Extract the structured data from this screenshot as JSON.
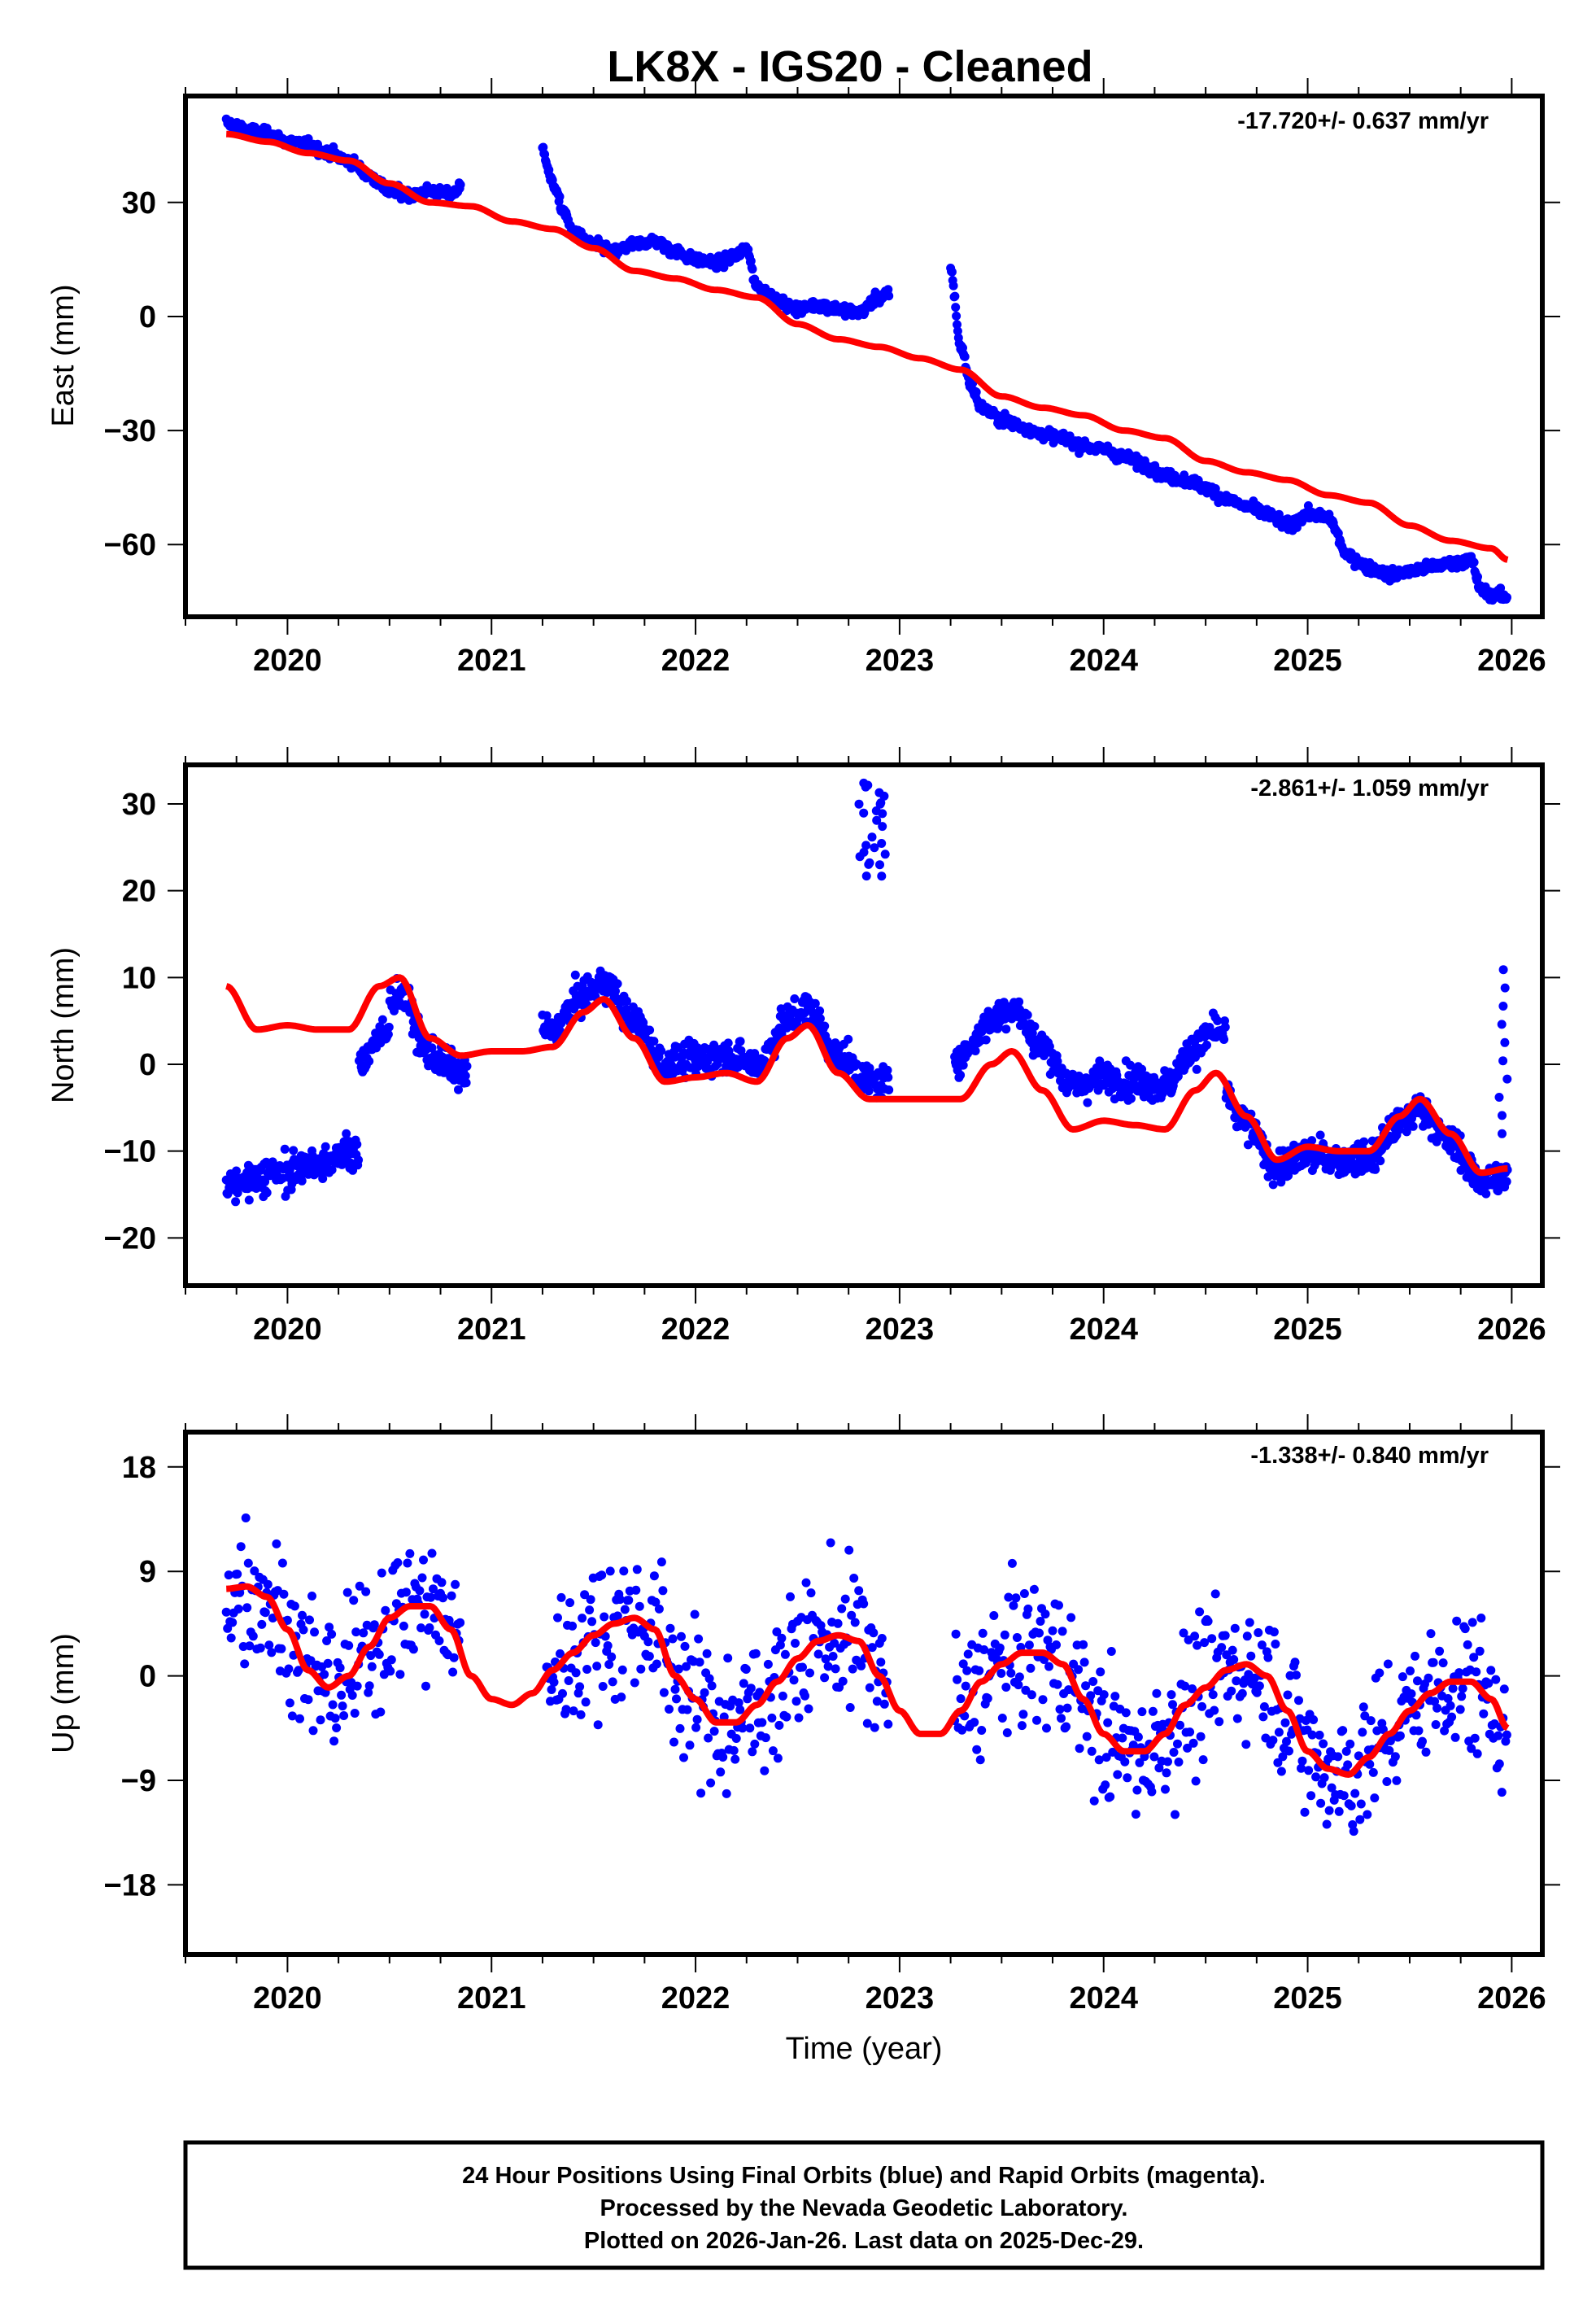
{
  "chart_data": {
    "type": "scatter",
    "title": "LK8X  - IGS20 - Cleaned",
    "xlabel": "Time (year)",
    "xlim": [
      2019.5,
      2026.15
    ],
    "x_ticks": [
      2020,
      2021,
      2022,
      2023,
      2024,
      2025,
      2026
    ],
    "x_tick_labels": [
      "2020",
      "2021",
      "2022",
      "2023",
      "2024",
      "2025",
      "2026"
    ],
    "x_minor_tick_step": 0.25,
    "grid": false,
    "colors": {
      "data": "#0000ff",
      "model": "#ff0000",
      "frame": "#000000"
    },
    "panels": [
      {
        "id": "east",
        "ylabel": "East (mm)",
        "ylim": [
          -79,
          58
        ],
        "y_ticks": [
          30,
          0,
          -30,
          -60
        ],
        "y_tick_labels": [
          "30",
          "0",
          "−30",
          "−60"
        ],
        "rate_label": "-17.720+/- 0.637 mm/yr",
        "model_series": {
          "name": "model",
          "x": [
            2019.7,
            2019.9,
            2020.1,
            2020.3,
            2020.5,
            2020.7,
            2020.9,
            2021.1,
            2021.3,
            2021.5,
            2021.7,
            2021.9,
            2022.1,
            2022.3,
            2022.5,
            2022.7,
            2022.9,
            2023.1,
            2023.3,
            2023.5,
            2023.7,
            2023.9,
            2024.1,
            2024.3,
            2024.5,
            2024.7,
            2024.9,
            2025.1,
            2025.3,
            2025.5,
            2025.7,
            2025.9,
            2025.98
          ],
          "y": [
            48,
            46,
            43,
            41,
            35,
            30,
            29,
            25,
            23,
            18,
            12,
            10,
            7,
            5,
            -2,
            -6,
            -8,
            -11,
            -14,
            -21,
            -24,
            -26,
            -30,
            -32,
            -38,
            -41,
            -43,
            -47,
            -49,
            -55,
            -59,
            -61,
            -64
          ]
        },
        "data_series": {
          "name": "daily positions",
          "segments": [
            {
              "x": [
                2019.7,
                2019.75,
                2019.8,
                2019.9,
                2020.0,
                2020.1,
                2020.2,
                2020.3,
                2020.4,
                2020.5,
                2020.6,
                2020.7,
                2020.8,
                2020.85
              ],
              "y": [
                51,
                50,
                49,
                48,
                46,
                45,
                43,
                41,
                37,
                33,
                32,
                33,
                32,
                34
              ]
            },
            {
              "x": [
                2021.25,
                2021.3,
                2021.35,
                2021.4,
                2021.5,
                2021.6,
                2021.7,
                2021.8,
                2021.9,
                2022.0,
                2022.1,
                2022.2,
                2022.25,
                2022.3,
                2022.4,
                2022.5,
                2022.6,
                2022.7,
                2022.8,
                2022.9,
                2022.95
              ],
              "y": [
                44,
                35,
                28,
                22,
                19,
                17,
                19,
                20,
                17,
                15,
                14,
                16,
                18,
                8,
                4,
                2,
                3,
                2,
                1,
                5,
                6
              ]
            },
            {
              "x": [
                2023.25,
                2023.3,
                2023.35,
                2023.4,
                2023.5,
                2023.6,
                2023.7,
                2023.8,
                2023.9,
                2024.0,
                2024.1,
                2024.2,
                2024.3,
                2024.4,
                2024.5,
                2024.6,
                2024.7,
                2024.8,
                2024.9,
                2025.0,
                2025.1,
                2025.2,
                2025.3,
                2025.4,
                2025.5,
                2025.6,
                2025.7,
                2025.8,
                2025.85,
                2025.9,
                2025.98
              ],
              "y": [
                12,
                -8,
                -18,
                -24,
                -27,
                -29,
                -31,
                -32,
                -34,
                -35,
                -37,
                -39,
                -42,
                -43,
                -45,
                -48,
                -50,
                -52,
                -55,
                -52,
                -53,
                -63,
                -66,
                -68,
                -67,
                -66,
                -65,
                -64,
                -72,
                -73,
                -74
              ]
            }
          ]
        }
      },
      {
        "id": "north",
        "ylabel": "North (mm)",
        "ylim": [
          -25.5,
          34.5
        ],
        "y_ticks": [
          30,
          20,
          10,
          0,
          -10,
          -20
        ],
        "y_tick_labels": [
          "30",
          "20",
          "10",
          "0",
          "−10",
          "−20"
        ],
        "rate_label": "-2.861+/- 1.059 mm/yr",
        "model_series": {
          "name": "model",
          "x": [
            2019.7,
            2019.85,
            2020.0,
            2020.15,
            2020.3,
            2020.45,
            2020.55,
            2020.7,
            2020.85,
            2021.0,
            2021.15,
            2021.3,
            2021.45,
            2021.55,
            2021.7,
            2021.85,
            2022.0,
            2022.15,
            2022.3,
            2022.45,
            2022.55,
            2022.7,
            2022.85,
            2023.0,
            2023.15,
            2023.3,
            2023.45,
            2023.55,
            2023.7,
            2023.85,
            2024.0,
            2024.15,
            2024.3,
            2024.45,
            2024.55,
            2024.7,
            2024.85,
            2025.0,
            2025.15,
            2025.3,
            2025.45,
            2025.55,
            2025.7,
            2025.85,
            2025.98
          ],
          "y": [
            9,
            4,
            4.5,
            4,
            4,
            9,
            10,
            3,
            1,
            1.5,
            1.5,
            2,
            6,
            7.5,
            3,
            -2,
            -1.5,
            -1,
            -2,
            3,
            4.5,
            -1,
            -4,
            -4,
            -4,
            -4,
            0,
            1.5,
            -3,
            -7.5,
            -6.5,
            -7,
            -7.5,
            -3,
            -1,
            -6,
            -11,
            -9.5,
            -10,
            -10,
            -6,
            -4,
            -8,
            -12.5,
            -12
          ]
        }
      },
      {
        "id": "up",
        "ylabel": "Up (mm)",
        "ylim": [
          -24,
          21
        ],
        "y_ticks": [
          18,
          9,
          0,
          -9,
          -18
        ],
        "y_tick_labels": [
          "18",
          "9",
          "0",
          "−9",
          "−18"
        ],
        "rate_label": "-1.338+/- 0.840 mm/yr",
        "model_series": {
          "name": "model",
          "x": [
            2019.7,
            2019.8,
            2019.9,
            2020.0,
            2020.1,
            2020.2,
            2020.3,
            2020.4,
            2020.5,
            2020.6,
            2020.7,
            2020.8,
            2020.9,
            2021.0,
            2021.1,
            2021.2,
            2021.3,
            2021.4,
            2021.5,
            2021.6,
            2021.7,
            2021.8,
            2021.9,
            2022.0,
            2022.1,
            2022.2,
            2022.3,
            2022.4,
            2022.5,
            2022.6,
            2022.7,
            2022.8,
            2022.9,
            2023.0,
            2023.1,
            2023.2,
            2023.3,
            2023.4,
            2023.5,
            2023.6,
            2023.7,
            2023.8,
            2023.9,
            2024.0,
            2024.1,
            2024.2,
            2024.3,
            2024.4,
            2024.5,
            2024.6,
            2024.7,
            2024.8,
            2024.9,
            2025.0,
            2025.1,
            2025.2,
            2025.3,
            2025.4,
            2025.5,
            2025.6,
            2025.7,
            2025.8,
            2025.9,
            2025.98
          ],
          "y": [
            7.5,
            7.7,
            6.8,
            4,
            0.5,
            -1,
            0,
            2.5,
            5,
            6,
            6,
            4,
            0,
            -2,
            -2.5,
            -1.5,
            0.5,
            2,
            3.5,
            4.5,
            5,
            4,
            0,
            -2,
            -4,
            -4,
            -2.5,
            -0.5,
            1.5,
            3,
            3.5,
            3,
            0,
            -3,
            -5,
            -5,
            -3,
            -0.5,
            1,
            2,
            2,
            1,
            -2,
            -5,
            -6.5,
            -6.5,
            -5,
            -2.5,
            -1,
            0.5,
            1,
            0,
            -3,
            -6.5,
            -8,
            -8.5,
            -7,
            -5,
            -3,
            -1.5,
            -0.5,
            -0.5,
            -2,
            -4.5
          ]
        }
      }
    ]
  },
  "footer": {
    "lines": [
      "24 Hour Positions Using Final Orbits (blue) and Rapid Orbits (magenta).",
      "Processed by the Nevada Geodetic Laboratory.",
      "Plotted on 2026-Jan-26. Last data on 2025-Dec-29."
    ]
  }
}
